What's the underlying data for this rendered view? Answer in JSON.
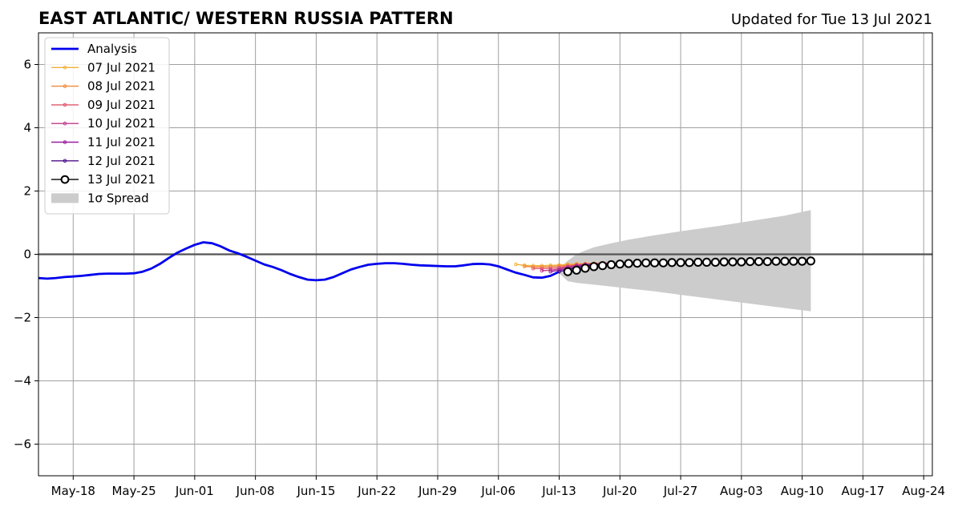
{
  "chart_data": {
    "type": "line",
    "title": "EAST ATLANTIC/ WESTERN RUSSIA PATTERN",
    "subtitle": "Updated for Tue 13 Jul 2021",
    "xlim": [
      "2021-05-14",
      "2021-08-25"
    ],
    "ylim": [
      -7,
      7
    ],
    "x_ticks": [
      "May-18",
      "May-25",
      "Jun-01",
      "Jun-08",
      "Jun-15",
      "Jun-22",
      "Jun-29",
      "Jul-06",
      "Jul-13",
      "Jul-20",
      "Jul-27",
      "Aug-03",
      "Aug-10",
      "Aug-17",
      "Aug-24"
    ],
    "y_ticks": [
      "6",
      "4",
      "2",
      "0",
      "−2",
      "−4",
      "−6"
    ],
    "grid": true,
    "zero_line": true,
    "legend_position": "top-left",
    "legend": [
      "Analysis",
      "07 Jul 2021",
      "08 Jul 2021",
      "09 Jul 2021",
      "10 Jul 2021",
      "11 Jul 2021",
      "12 Jul 2021",
      "13 Jul 2021",
      "1σ Spread"
    ],
    "series": [
      {
        "name": "Analysis",
        "color": "#0000ee",
        "x": [
          "2021-05-14",
          "2021-05-15",
          "2021-05-16",
          "2021-05-17",
          "2021-05-18",
          "2021-05-19",
          "2021-05-20",
          "2021-05-21",
          "2021-05-22",
          "2021-05-23",
          "2021-05-24",
          "2021-05-25",
          "2021-05-26",
          "2021-05-27",
          "2021-05-28",
          "2021-05-29",
          "2021-05-30",
          "2021-05-31",
          "2021-06-01",
          "2021-06-02",
          "2021-06-03",
          "2021-06-04",
          "2021-06-05",
          "2021-06-06",
          "2021-06-07",
          "2021-06-08",
          "2021-06-09",
          "2021-06-10",
          "2021-06-11",
          "2021-06-12",
          "2021-06-13",
          "2021-06-14",
          "2021-06-15",
          "2021-06-16",
          "2021-06-17",
          "2021-06-18",
          "2021-06-19",
          "2021-06-20",
          "2021-06-21",
          "2021-06-22",
          "2021-06-23",
          "2021-06-24",
          "2021-06-25",
          "2021-06-26",
          "2021-06-27",
          "2021-06-28",
          "2021-06-29",
          "2021-06-30",
          "2021-07-01",
          "2021-07-02",
          "2021-07-03",
          "2021-07-04",
          "2021-07-05",
          "2021-07-06",
          "2021-07-07",
          "2021-07-08",
          "2021-07-09",
          "2021-07-10",
          "2021-07-11",
          "2021-07-12",
          "2021-07-13"
        ],
        "values": [
          -0.75,
          -0.77,
          -0.75,
          -0.72,
          -0.7,
          -0.68,
          -0.65,
          -0.62,
          -0.61,
          -0.61,
          -0.61,
          -0.6,
          -0.55,
          -0.45,
          -0.3,
          -0.12,
          0.05,
          0.18,
          0.3,
          0.38,
          0.35,
          0.25,
          0.12,
          0.03,
          -0.08,
          -0.2,
          -0.32,
          -0.4,
          -0.5,
          -0.62,
          -0.72,
          -0.8,
          -0.82,
          -0.8,
          -0.72,
          -0.6,
          -0.48,
          -0.4,
          -0.33,
          -0.3,
          -0.28,
          -0.28,
          -0.3,
          -0.33,
          -0.35,
          -0.36,
          -0.37,
          -0.38,
          -0.38,
          -0.35,
          -0.31,
          -0.3,
          -0.32,
          -0.38,
          -0.48,
          -0.58,
          -0.65,
          -0.73,
          -0.74,
          -0.68,
          -0.55
        ]
      },
      {
        "name": "07 Jul 2021",
        "color": "#f2b03a",
        "x": [
          "2021-07-08",
          "2021-07-09",
          "2021-07-10",
          "2021-07-11",
          "2021-07-12",
          "2021-07-13",
          "2021-07-14",
          "2021-07-15",
          "2021-07-16",
          "2021-07-17",
          "2021-07-18",
          "2021-07-19"
        ],
        "values": [
          -0.32,
          -0.35,
          -0.36,
          -0.36,
          -0.35,
          -0.34,
          -0.32,
          -0.3,
          -0.29,
          -0.28,
          -0.28,
          -0.27
        ]
      },
      {
        "name": "08 Jul 2021",
        "color": "#f08a3a",
        "x": [
          "2021-07-09",
          "2021-07-10",
          "2021-07-11",
          "2021-07-12",
          "2021-07-13",
          "2021-07-14",
          "2021-07-15",
          "2021-07-16",
          "2021-07-17",
          "2021-07-18",
          "2021-07-19",
          "2021-07-20"
        ],
        "values": [
          -0.38,
          -0.4,
          -0.4,
          -0.39,
          -0.37,
          -0.35,
          -0.32,
          -0.3,
          -0.29,
          -0.28,
          -0.28,
          -0.27
        ]
      },
      {
        "name": "09 Jul 2021",
        "color": "#e2556a",
        "x": [
          "2021-07-10",
          "2021-07-11",
          "2021-07-12",
          "2021-07-13",
          "2021-07-14",
          "2021-07-15",
          "2021-07-16",
          "2021-07-17",
          "2021-07-18",
          "2021-07-19",
          "2021-07-20"
        ],
        "values": [
          -0.45,
          -0.45,
          -0.44,
          -0.42,
          -0.38,
          -0.34,
          -0.31,
          -0.3,
          -0.29,
          -0.28,
          -0.28
        ]
      },
      {
        "name": "10 Jul 2021",
        "color": "#c23a8a",
        "x": [
          "2021-07-11",
          "2021-07-12",
          "2021-07-13",
          "2021-07-14",
          "2021-07-15",
          "2021-07-16",
          "2021-07-17",
          "2021-07-18",
          "2021-07-19",
          "2021-07-20"
        ],
        "values": [
          -0.52,
          -0.5,
          -0.46,
          -0.4,
          -0.35,
          -0.32,
          -0.3,
          -0.29,
          -0.28,
          -0.28
        ]
      },
      {
        "name": "11 Jul 2021",
        "color": "#9a1fa0",
        "x": [
          "2021-07-12",
          "2021-07-13",
          "2021-07-14",
          "2021-07-15",
          "2021-07-16",
          "2021-07-17",
          "2021-07-18",
          "2021-07-19",
          "2021-07-20"
        ],
        "values": [
          -0.55,
          -0.5,
          -0.44,
          -0.38,
          -0.34,
          -0.31,
          -0.3,
          -0.29,
          -0.28
        ]
      },
      {
        "name": "12 Jul 2021",
        "color": "#4b0f8a",
        "x": [
          "2021-07-13",
          "2021-07-14",
          "2021-07-15",
          "2021-07-16",
          "2021-07-17",
          "2021-07-18",
          "2021-07-19",
          "2021-07-20"
        ],
        "values": [
          -0.55,
          -0.48,
          -0.42,
          -0.37,
          -0.33,
          -0.31,
          -0.3,
          -0.29
        ]
      },
      {
        "name": "13 Jul 2021",
        "color": "#000000",
        "x": [
          "2021-07-14",
          "2021-07-15",
          "2021-07-16",
          "2021-07-17",
          "2021-07-18",
          "2021-07-19",
          "2021-07-20",
          "2021-07-21",
          "2021-07-22",
          "2021-07-23",
          "2021-07-24",
          "2021-07-25",
          "2021-07-26",
          "2021-07-27",
          "2021-07-28",
          "2021-07-29",
          "2021-07-30",
          "2021-07-31",
          "2021-08-01",
          "2021-08-02",
          "2021-08-03",
          "2021-08-04",
          "2021-08-05",
          "2021-08-06",
          "2021-08-07",
          "2021-08-08",
          "2021-08-09",
          "2021-08-10",
          "2021-08-11"
        ],
        "values": [
          -0.55,
          -0.5,
          -0.44,
          -0.39,
          -0.36,
          -0.33,
          -0.31,
          -0.29,
          -0.28,
          -0.27,
          -0.27,
          -0.27,
          -0.26,
          -0.26,
          -0.26,
          -0.25,
          -0.25,
          -0.25,
          -0.24,
          -0.24,
          -0.24,
          -0.23,
          -0.23,
          -0.23,
          -0.22,
          -0.22,
          -0.22,
          -0.22,
          -0.21
        ]
      }
    ],
    "spread": {
      "name": "1σ Spread",
      "color": "#cccccc",
      "x": [
        "2021-07-13",
        "2021-07-14",
        "2021-07-15",
        "2021-07-16",
        "2021-07-17",
        "2021-07-19",
        "2021-07-21",
        "2021-07-24",
        "2021-07-27",
        "2021-07-31",
        "2021-08-04",
        "2021-08-08",
        "2021-08-11"
      ],
      "upper": [
        -0.45,
        -0.2,
        0.0,
        0.12,
        0.22,
        0.35,
        0.46,
        0.6,
        0.73,
        0.88,
        1.05,
        1.22,
        1.4
      ],
      "lower": [
        -0.6,
        -0.85,
        -0.9,
        -0.93,
        -0.96,
        -1.02,
        -1.08,
        -1.17,
        -1.28,
        -1.42,
        -1.56,
        -1.7,
        -1.8
      ]
    }
  }
}
